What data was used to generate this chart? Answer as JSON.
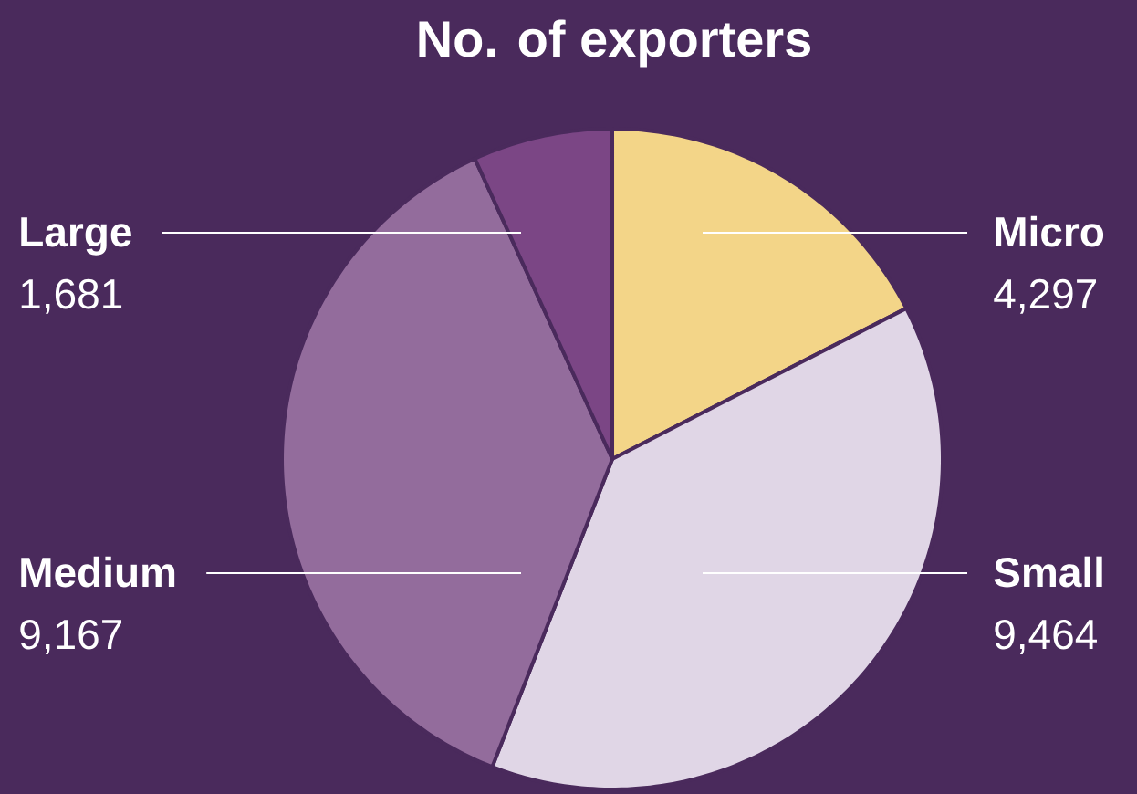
{
  "chart_data": {
    "type": "pie",
    "title": "No. of exporters",
    "categories": [
      "Micro",
      "Small",
      "Medium",
      "Large"
    ],
    "values": [
      4297,
      9464,
      9167,
      1681
    ],
    "colors": [
      "#f3d588",
      "#e0d6e6",
      "#936c9c",
      "#7b4685"
    ],
    "value_labels": [
      "4,297",
      "9,464",
      "9,167",
      "1,681"
    ]
  }
}
